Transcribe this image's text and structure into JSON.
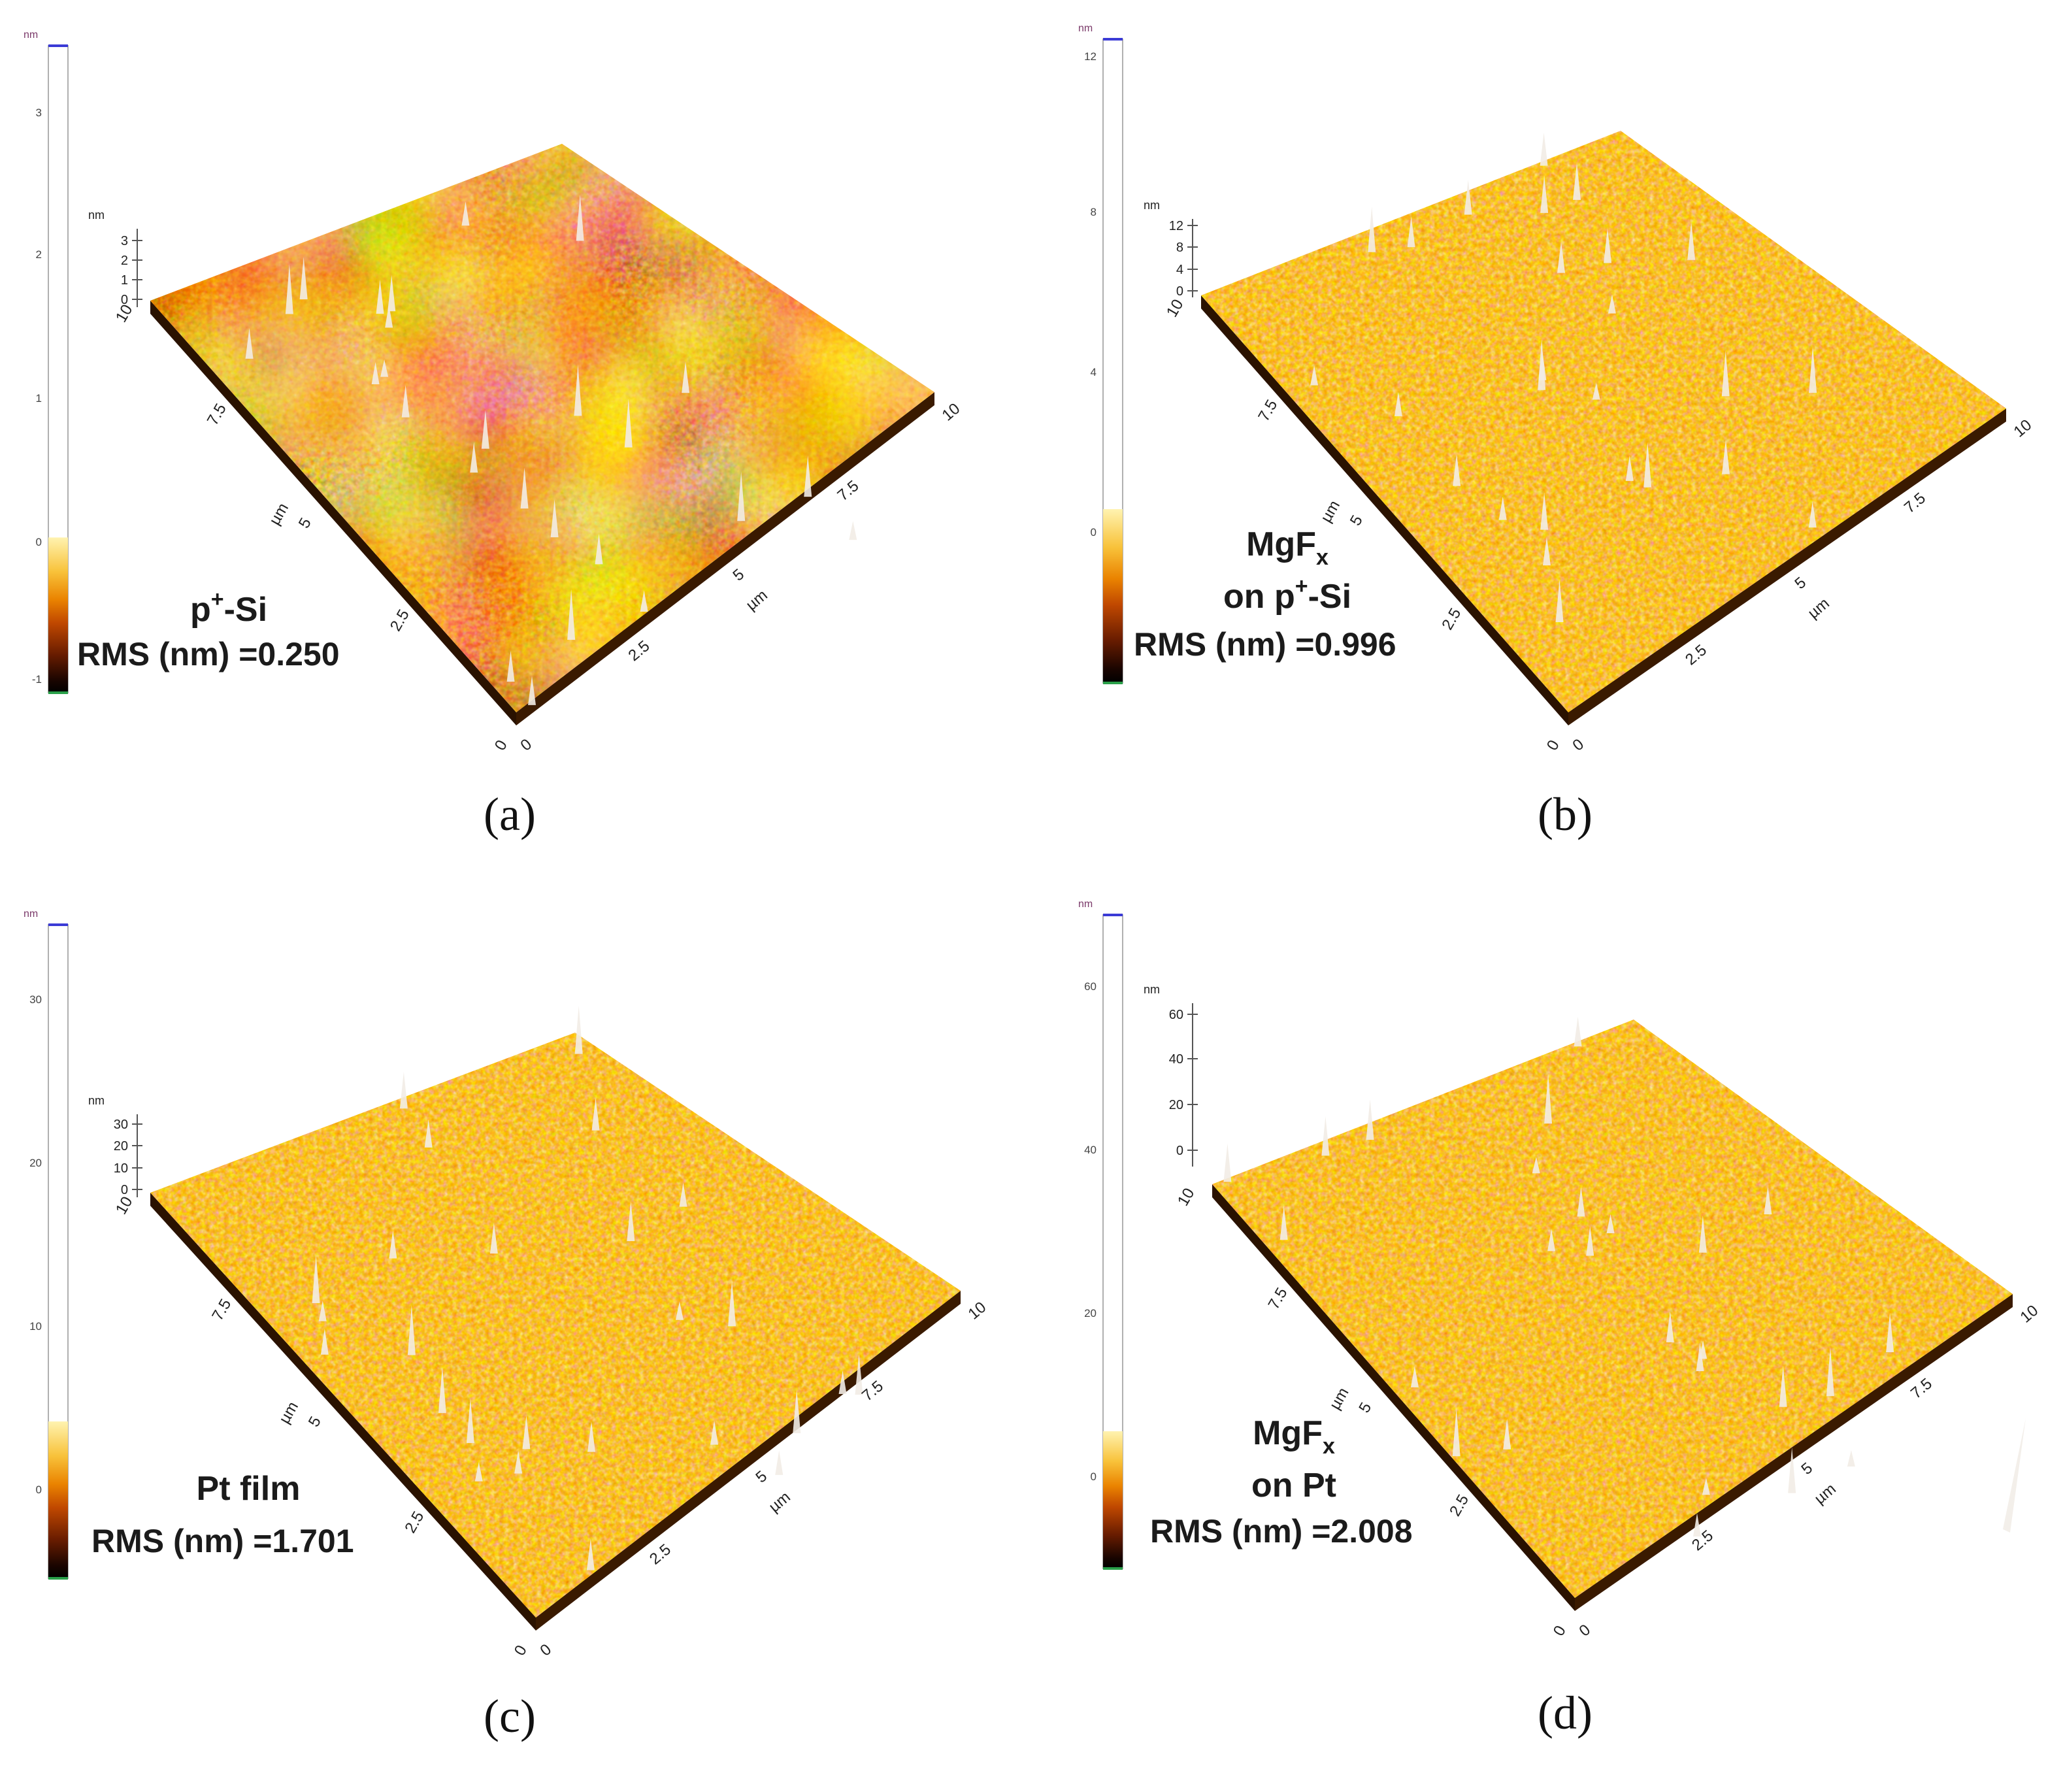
{
  "colorbar_unit": "nm",
  "axis_unit_z": "nm",
  "axis_unit_xy": "µm",
  "axis_ticks_xy": [
    "0",
    "2.5",
    "5",
    "7.5",
    "10"
  ],
  "colorscale": [
    "#000000",
    "#3a0a00",
    "#7a2200",
    "#c24a00",
    "#e87a00",
    "#f6b41e",
    "#fbe372",
    "#fffbe8"
  ],
  "panels": [
    {
      "id": "a",
      "caption": "(a)",
      "label_line1": "p",
      "label_sup": "+",
      "label_line1_tail": "-Si",
      "label_line2": "",
      "rms_text": "RMS (nm) =0.250",
      "colorbar_ticks": [
        "3",
        "2",
        "1",
        "0",
        "-1"
      ],
      "z_ticks": [
        "3",
        "2",
        "1",
        "0"
      ],
      "rms_nm": 0.25
    },
    {
      "id": "b",
      "caption": "(b)",
      "label_line1": "MgF",
      "label_sub": "x",
      "label_line2_pre": "on p",
      "label_line2_sup": "+",
      "label_line2_tail": "-Si",
      "rms_text": "RMS (nm) =0.996",
      "colorbar_ticks": [
        "12",
        "8",
        "4",
        "0"
      ],
      "z_ticks": [
        "12",
        "8",
        "4",
        "0"
      ],
      "rms_nm": 0.996
    },
    {
      "id": "c",
      "caption": "(c)",
      "label_line1": "Pt film",
      "rms_text": "RMS (nm) =1.701",
      "colorbar_ticks": [
        "30",
        "20",
        "10",
        "0"
      ],
      "z_ticks": [
        "30",
        "20",
        "10",
        "0"
      ],
      "rms_nm": 1.701
    },
    {
      "id": "d",
      "caption": "(d)",
      "label_line1": "MgF",
      "label_sub": "x",
      "label_line2": "on Pt",
      "rms_text": "RMS (nm) =2.008",
      "colorbar_ticks": [
        "60",
        "40",
        "20",
        "0"
      ],
      "z_ticks": [
        "60",
        "40",
        "20",
        "0"
      ],
      "rms_nm": 2.008
    }
  ]
}
